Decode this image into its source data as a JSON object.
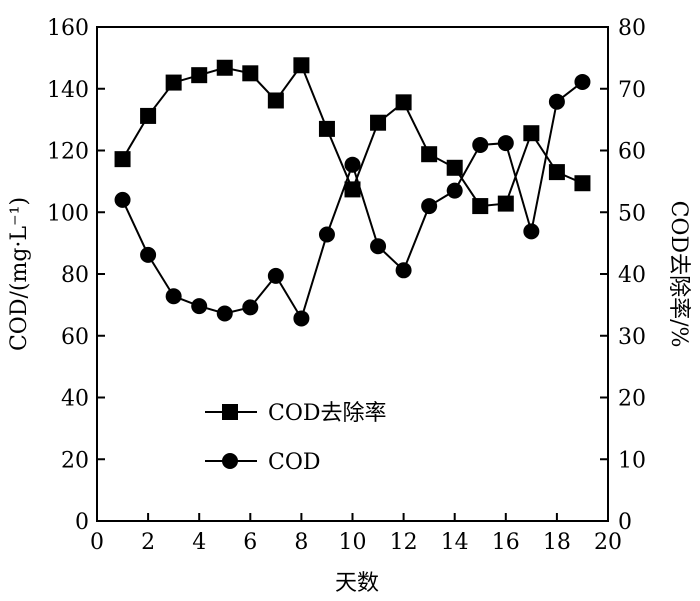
{
  "chart_data": {
    "type": "line",
    "xlabel": "天数",
    "ylabel_left": "COD/(mg·L⁻¹)",
    "ylabel_right": "COD去除率/%",
    "xlim": [
      0,
      20
    ],
    "ylim_left": [
      0,
      160
    ],
    "ylim_right": [
      0,
      80
    ],
    "xticks": [
      "0",
      "2",
      "4",
      "6",
      "8",
      "10",
      "12",
      "14",
      "16",
      "18",
      "20"
    ],
    "yticks_left": [
      "0",
      "20",
      "40",
      "60",
      "80",
      "100",
      "120",
      "140",
      "160"
    ],
    "yticks_right": [
      "0",
      "10",
      "20",
      "30",
      "40",
      "50",
      "60",
      "70",
      "80"
    ],
    "legend_position": "center-left",
    "grid": false,
    "x": [
      1,
      2,
      3,
      4,
      5,
      6,
      7,
      8,
      9,
      10,
      11,
      12,
      13,
      14,
      15,
      16,
      17,
      18,
      19
    ],
    "series": [
      {
        "name": "COD去除率",
        "axis": "right",
        "marker": "square",
        "values": [
          58.6,
          65.6,
          71.0,
          72.2,
          73.4,
          72.5,
          68.1,
          73.8,
          63.5,
          53.7,
          64.5,
          67.8,
          59.4,
          57.2,
          51.0,
          51.4,
          62.8,
          56.5,
          54.7
        ]
      },
      {
        "name": "COD",
        "axis": "left",
        "marker": "circle",
        "values": [
          104.0,
          86.2,
          72.8,
          69.6,
          67.2,
          69.2,
          79.4,
          65.6,
          92.8,
          115.4,
          89.0,
          81.2,
          102.0,
          107.0,
          121.8,
          122.4,
          93.8,
          135.8,
          142.2
        ]
      }
    ]
  }
}
